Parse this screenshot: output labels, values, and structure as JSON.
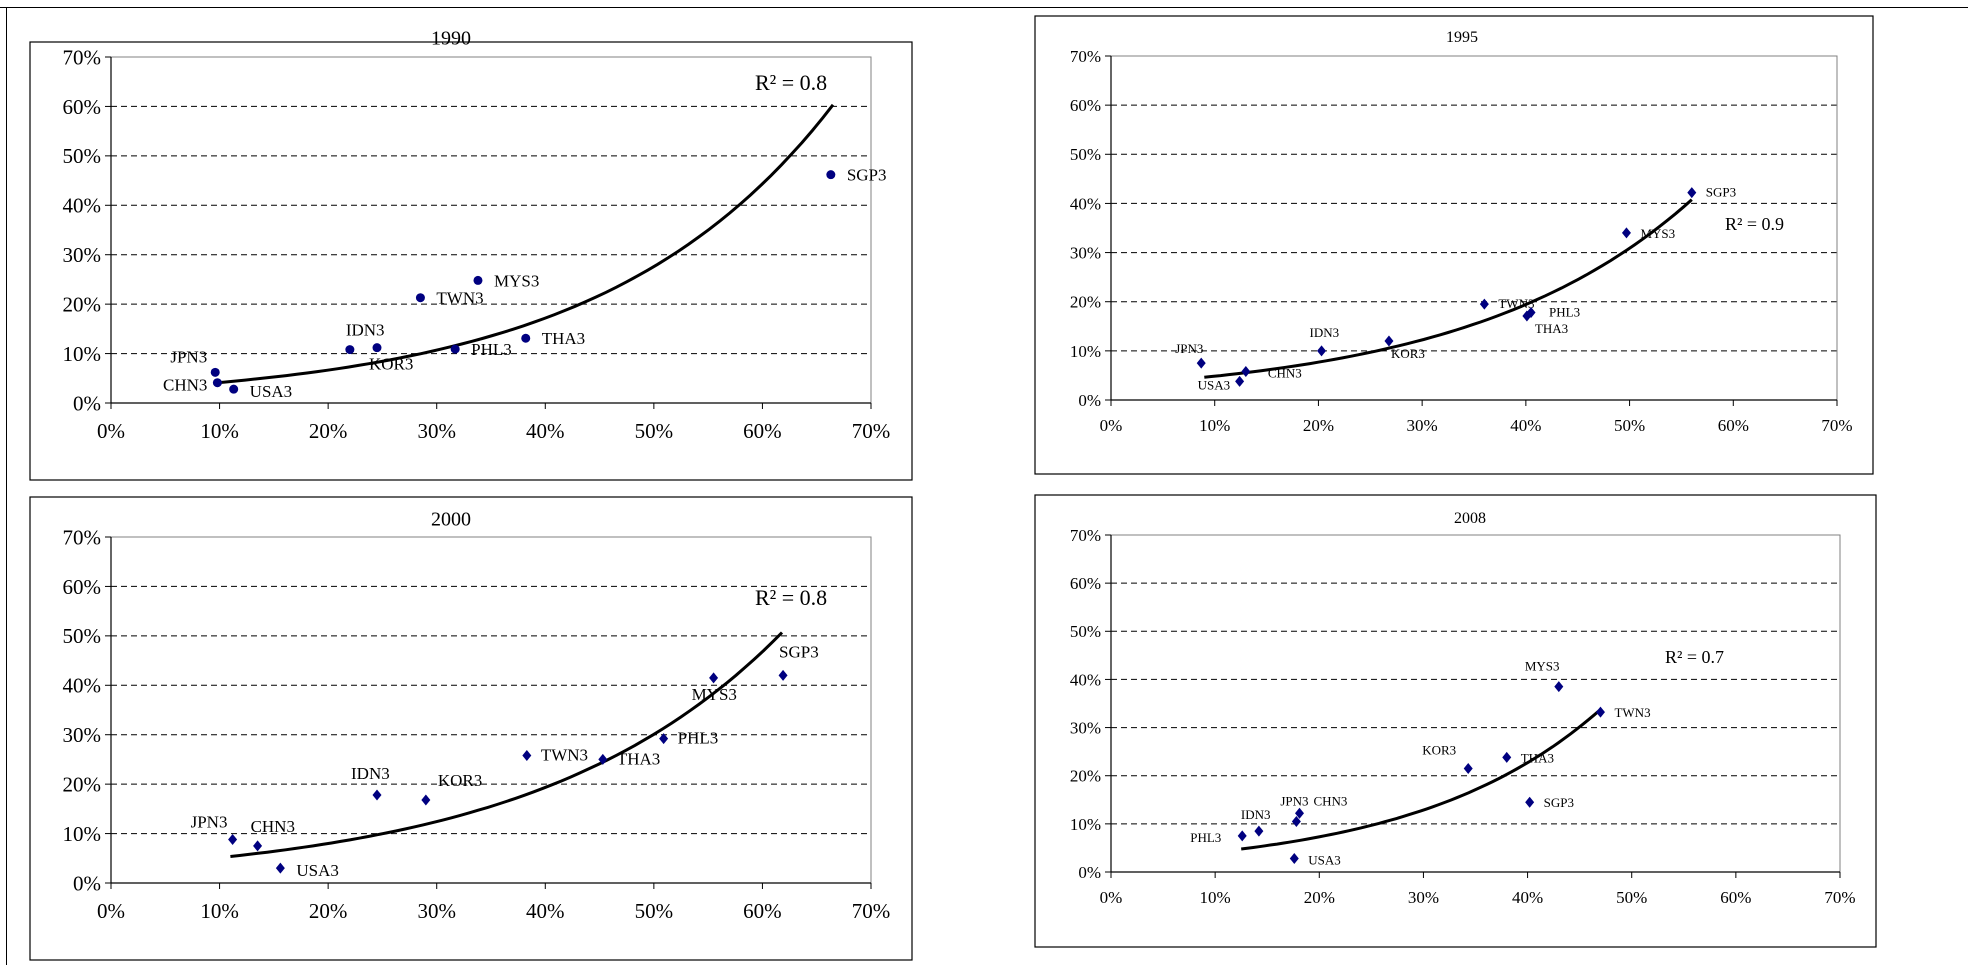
{
  "chart_data": [
    {
      "type": "scatter",
      "title": "1990",
      "xlim": [
        0,
        70
      ],
      "ylim": [
        0,
        70
      ],
      "xticks": [
        "0%",
        "10%",
        "20%",
        "30%",
        "40%",
        "50%",
        "60%",
        "70%"
      ],
      "yticks": [
        "0%",
        "10%",
        "20%",
        "30%",
        "40%",
        "50%",
        "60%",
        "70%"
      ],
      "grid": "horizontal-dashed",
      "marker": "circle",
      "color": "#000080",
      "r2_label": "R² = 0.8",
      "points": [
        {
          "label": "JPN3",
          "x": 9.6,
          "y": 6.2
        },
        {
          "label": "CHN3",
          "x": 9.8,
          "y": 4.1
        },
        {
          "label": "USA3",
          "x": 11.3,
          "y": 2.8
        },
        {
          "label": "IDN3",
          "x": 22.0,
          "y": 10.8
        },
        {
          "label": "KOR3",
          "x": 24.5,
          "y": 11.2
        },
        {
          "label": "TWN3",
          "x": 28.5,
          "y": 21.3
        },
        {
          "label": "PHL3",
          "x": 31.7,
          "y": 10.9
        },
        {
          "label": "MYS3",
          "x": 33.8,
          "y": 24.8
        },
        {
          "label": "THA3",
          "x": 38.2,
          "y": 13.1
        },
        {
          "label": "SGP3",
          "x": 66.3,
          "y": 46.2
        }
      ],
      "trend": {
        "x0": 9.5,
        "x1": 66.5,
        "a": 2.58,
        "b": 0.0474
      }
    },
    {
      "type": "scatter",
      "title": "1995",
      "xlim": [
        0,
        70
      ],
      "ylim": [
        0,
        70
      ],
      "xticks": [
        "0%",
        "10%",
        "20%",
        "30%",
        "40%",
        "50%",
        "60%",
        "70%"
      ],
      "yticks": [
        "0%",
        "10%",
        "20%",
        "30%",
        "40%",
        "50%",
        "60%",
        "70%"
      ],
      "grid": "horizontal-dashed",
      "marker": "diamond",
      "color": "#000080",
      "r2_label": "R² = 0.9",
      "points": [
        {
          "label": "JPN3",
          "x": 8.7,
          "y": 7.5
        },
        {
          "label": "USA3",
          "x": 12.4,
          "y": 3.8
        },
        {
          "label": "CHN3",
          "x": 13.0,
          "y": 5.8
        },
        {
          "label": "IDN3",
          "x": 20.3,
          "y": 10.0
        },
        {
          "label": "KOR3",
          "x": 26.8,
          "y": 12.0
        },
        {
          "label": "TWN3",
          "x": 36.0,
          "y": 19.5
        },
        {
          "label": "PHL3",
          "x": 40.5,
          "y": 17.8
        },
        {
          "label": "THA3",
          "x": 40.1,
          "y": 17.1
        },
        {
          "label": "MYS3",
          "x": 49.7,
          "y": 34.0
        },
        {
          "label": "SGP3",
          "x": 56.0,
          "y": 42.2
        }
      ],
      "trend": {
        "x0": 9.0,
        "x1": 56.0,
        "a": 3.05,
        "b": 0.0463
      }
    },
    {
      "type": "scatter",
      "title": "2000",
      "xlim": [
        0,
        70
      ],
      "ylim": [
        0,
        70
      ],
      "xticks": [
        "0%",
        "10%",
        "20%",
        "30%",
        "40%",
        "50%",
        "60%",
        "70%"
      ],
      "yticks": [
        "0%",
        "10%",
        "20%",
        "30%",
        "40%",
        "50%",
        "60%",
        "70%"
      ],
      "grid": "horizontal-dashed",
      "marker": "diamond",
      "color": "#000080",
      "r2_label": "R² = 0.8",
      "points": [
        {
          "label": "JPN3",
          "x": 11.2,
          "y": 8.8
        },
        {
          "label": "CHN3",
          "x": 13.5,
          "y": 7.5
        },
        {
          "label": "USA3",
          "x": 15.6,
          "y": 3.0
        },
        {
          "label": "IDN3",
          "x": 24.5,
          "y": 17.8
        },
        {
          "label": "KOR3",
          "x": 29.0,
          "y": 16.8
        },
        {
          "label": "TWN3",
          "x": 38.3,
          "y": 25.8
        },
        {
          "label": "THA3",
          "x": 45.3,
          "y": 25.0
        },
        {
          "label": "PHL3",
          "x": 50.9,
          "y": 29.2
        },
        {
          "label": "MYS3",
          "x": 55.5,
          "y": 41.5
        },
        {
          "label": "SGP3",
          "x": 61.9,
          "y": 42.0
        }
      ],
      "trend": {
        "x0": 11.0,
        "x1": 61.8,
        "a": 3.3,
        "b": 0.0442
      }
    },
    {
      "type": "scatter",
      "title": "2008",
      "xlim": [
        0,
        70
      ],
      "ylim": [
        0,
        70
      ],
      "xticks": [
        "0%",
        "10%",
        "20%",
        "30%",
        "40%",
        "50%",
        "60%",
        "70%"
      ],
      "yticks": [
        "0%",
        "10%",
        "20%",
        "30%",
        "40%",
        "50%",
        "60%",
        "70%"
      ],
      "grid": "horizontal-dashed",
      "marker": "diamond",
      "color": "#000080",
      "r2_label": "R² = 0.7",
      "points": [
        {
          "label": "PHL3",
          "x": 12.6,
          "y": 7.5
        },
        {
          "label": "IDN3",
          "x": 14.2,
          "y": 8.5
        },
        {
          "label": "JPN3",
          "x": 17.8,
          "y": 10.5
        },
        {
          "label": "CHN3",
          "x": 18.1,
          "y": 12.2
        },
        {
          "label": "USA3",
          "x": 17.6,
          "y": 2.8
        },
        {
          "label": "KOR3",
          "x": 34.3,
          "y": 21.5
        },
        {
          "label": "THA3",
          "x": 38.0,
          "y": 23.8
        },
        {
          "label": "SGP3",
          "x": 40.2,
          "y": 14.5
        },
        {
          "label": "MYS3",
          "x": 43.0,
          "y": 38.5
        },
        {
          "label": "TWN3",
          "x": 47.0,
          "y": 33.2
        }
      ],
      "trend": {
        "x0": 12.5,
        "x1": 47.0,
        "a": 2.35,
        "b": 0.0567
      }
    }
  ]
}
